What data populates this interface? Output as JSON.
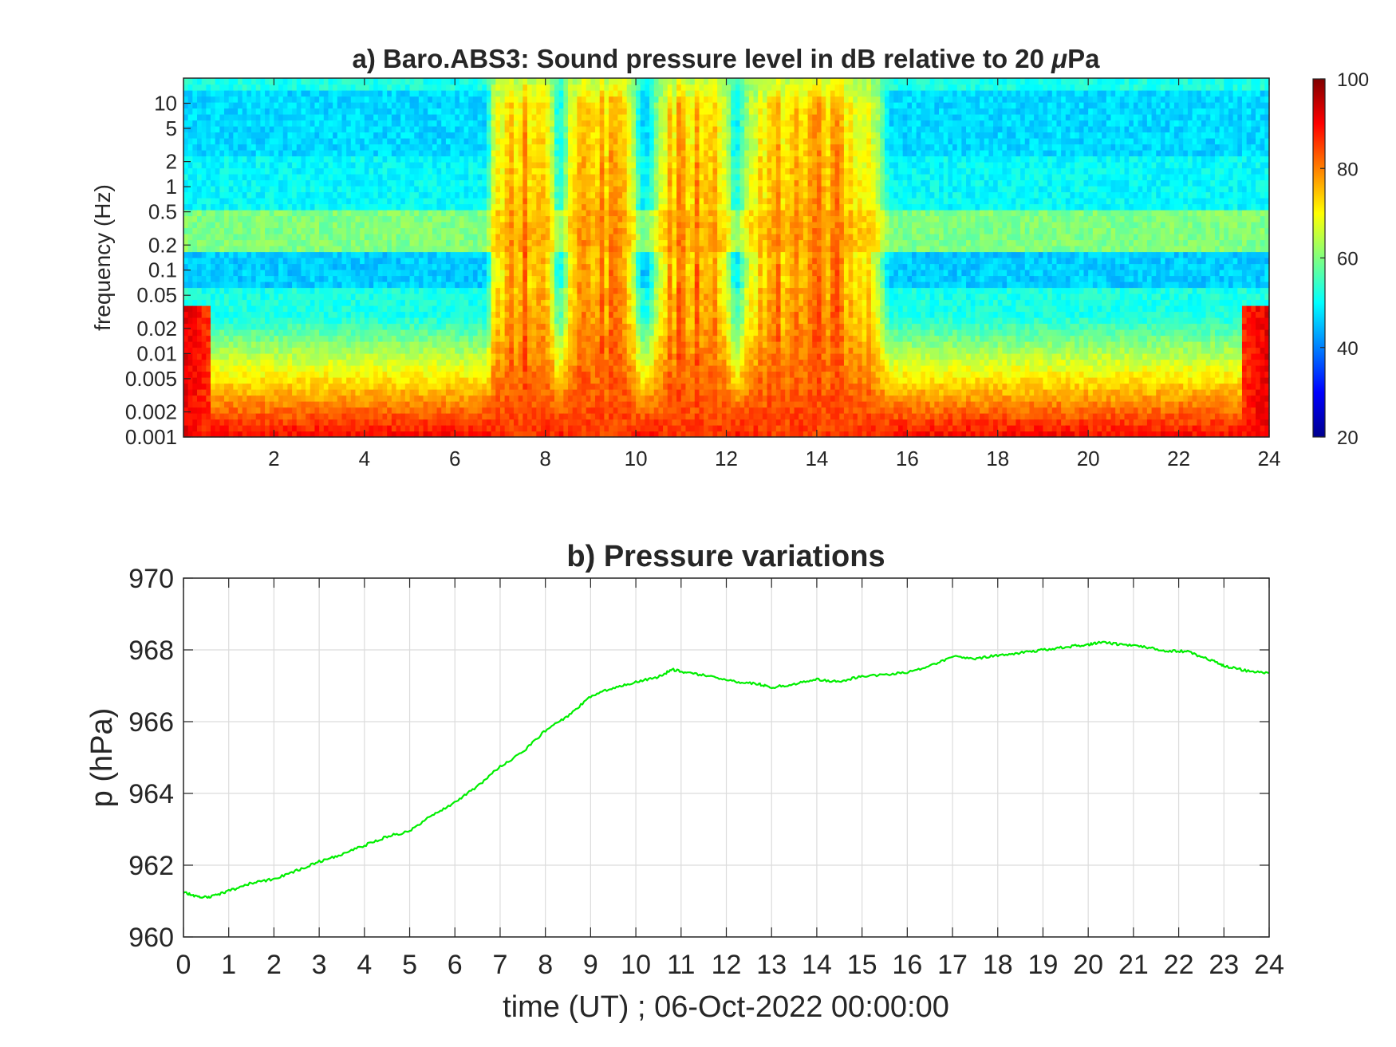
{
  "chart_data": [
    {
      "type": "heatmap",
      "title_prefix": "a) Baro.ABS3: Sound pressure level in dB relative to 20 ",
      "title_symbol": "μ",
      "title_suffix": "Pa",
      "xlabel": "",
      "ylabel": "frequency (Hz)",
      "xlim": [
        0,
        24
      ],
      "x_ticks": [
        "2",
        "4",
        "6",
        "8",
        "10",
        "12",
        "14",
        "16",
        "18",
        "20",
        "22",
        "24"
      ],
      "y_scale": "log",
      "ylim": [
        0.001,
        20
      ],
      "y_ticks": [
        "0.001",
        "0.002",
        "0.005",
        "0.01",
        "0.02",
        "0.05",
        "0.1",
        "0.2",
        "0.5",
        "1",
        "2",
        "5",
        "10"
      ],
      "y_tick_values": [
        0.001,
        0.002,
        0.005,
        0.01,
        0.02,
        0.05,
        0.1,
        0.2,
        0.5,
        1,
        2,
        5,
        10
      ],
      "colormap": "jet",
      "colorbar": {
        "clim": [
          20,
          100
        ],
        "ticks": [
          "20",
          "40",
          "60",
          "80",
          "100"
        ],
        "tick_values": [
          20,
          40,
          60,
          80,
          100
        ]
      },
      "active_bursts_hours": [
        [
          6.7,
          8.3
        ],
        [
          8.3,
          10.1
        ],
        [
          10.3,
          12.2
        ],
        [
          12.2,
          15.6
        ]
      ],
      "background_level_db": 50,
      "burst_level_db": 85,
      "low_frequency_level_db": 88
    },
    {
      "type": "line",
      "title": "b) Pressure variations",
      "xlabel": "time (UT) ; 06-Oct-2022 00:00:00",
      "ylabel": "p (hPa)",
      "xlim": [
        0,
        24
      ],
      "ylim": [
        960,
        970
      ],
      "grid": true,
      "x_ticks": [
        "0",
        "1",
        "2",
        "3",
        "4",
        "5",
        "6",
        "7",
        "8",
        "9",
        "10",
        "11",
        "12",
        "13",
        "14",
        "15",
        "16",
        "17",
        "18",
        "19",
        "20",
        "21",
        "22",
        "23",
        "24"
      ],
      "y_ticks": [
        "960",
        "962",
        "964",
        "966",
        "968",
        "970"
      ],
      "y_tick_values": [
        960,
        962,
        964,
        966,
        968,
        970
      ],
      "series": [
        {
          "color": "#00ee00",
          "x": [
            0,
            0.3,
            0.6,
            1,
            1.5,
            2,
            2.5,
            3,
            3.5,
            4,
            4.5,
            5,
            5.5,
            6,
            6.5,
            7,
            7.5,
            8,
            8.5,
            9,
            9.5,
            10,
            10.5,
            10.8,
            11.2,
            11.7,
            12.2,
            12.7,
            13,
            13.5,
            14,
            14.5,
            15,
            15.5,
            16,
            16.5,
            17,
            17.5,
            18,
            18.5,
            19,
            19.5,
            20,
            20.3,
            20.7,
            21.2,
            21.7,
            22.2,
            22.7,
            23,
            23.5,
            24
          ],
          "values": [
            961.25,
            961.12,
            961.12,
            961.28,
            961.5,
            961.62,
            961.85,
            962.1,
            962.3,
            962.55,
            962.8,
            962.95,
            963.4,
            963.75,
            964.2,
            964.75,
            965.15,
            965.75,
            966.15,
            966.7,
            966.95,
            967.1,
            967.25,
            967.45,
            967.35,
            967.25,
            967.12,
            967.05,
            966.95,
            967.05,
            967.18,
            967.1,
            967.28,
            967.3,
            967.38,
            967.55,
            967.82,
            967.75,
            967.85,
            967.92,
            968.0,
            968.08,
            968.15,
            968.22,
            968.15,
            968.1,
            967.98,
            967.95,
            967.72,
            967.55,
            967.42,
            967.35
          ]
        }
      ]
    }
  ]
}
